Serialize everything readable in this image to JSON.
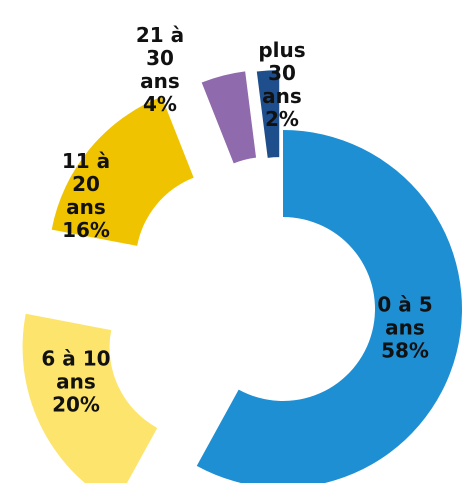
{
  "chart_data": {
    "type": "donut",
    "categories": [
      "0 à 5 ans",
      "6 à 10 ans",
      "11 à 20 ans",
      "21 à 30 ans",
      "plus 30 ans"
    ],
    "values": [
      58,
      20,
      16,
      4,
      2
    ],
    "value_labels": [
      "58%",
      "20%",
      "16%",
      "4%",
      "2%"
    ],
    "colors": [
      "#1e8fd3",
      "#fde46c",
      "#f0c300",
      "#8f6aac",
      "#1f4e8d"
    ]
  }
}
